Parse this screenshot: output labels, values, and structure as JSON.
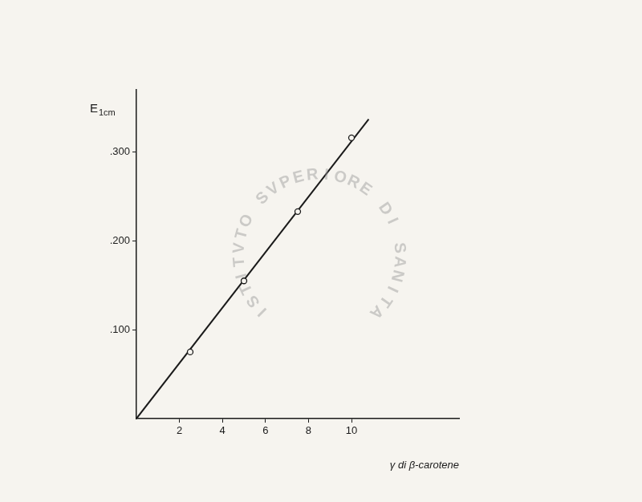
{
  "chart_data": {
    "type": "scatter",
    "x_label": "γ di β-carotene",
    "y_label": "E1cm",
    "annotations": [
      "ISTITVTO SVPERIORE DI SANITA"
    ],
    "series": [
      {
        "type": "scatter",
        "marker": "circle",
        "color": "#1a1a1a",
        "x": [
          2.5,
          5,
          7.5,
          10
        ],
        "values": [
          0.075,
          0.155,
          0.233,
          0.316
        ]
      },
      {
        "type": "line",
        "line_style": "solid",
        "color": "#1a1a1a",
        "x": [
          0,
          10.8
        ],
        "values": [
          0,
          0.337
        ]
      }
    ],
    "xlim": [
      0,
      15
    ],
    "ylim": [
      0,
      0.37
    ],
    "xticks": [
      2,
      4,
      6,
      8,
      10
    ],
    "yticks": [
      {
        "value": 0.1,
        "label": ".100"
      },
      {
        "value": 0.2,
        "label": ".200"
      },
      {
        "value": 0.3,
        "label": ".300"
      }
    ],
    "grid": false,
    "legend": "none"
  }
}
